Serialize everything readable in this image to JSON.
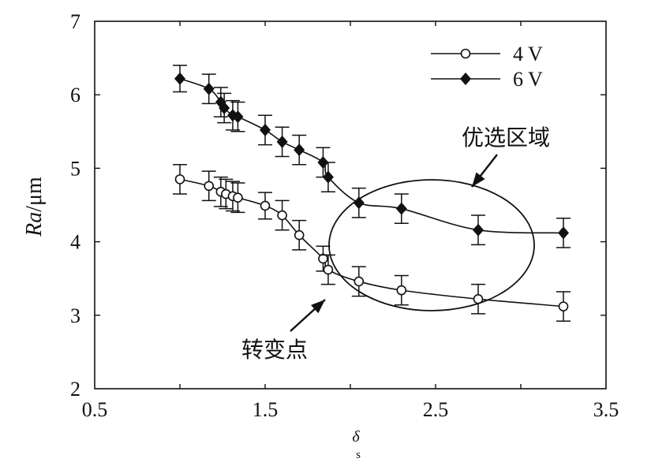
{
  "chart_data": {
    "type": "line",
    "xlabel": "δ",
    "xlabel_sub": "s",
    "ylabel_italic": "Ra",
    "ylabel_rest": "/μm",
    "xlim": [
      0.5,
      3.5
    ],
    "ylim": [
      2,
      7
    ],
    "xticks": [
      "0.5",
      "1.5",
      "2.5",
      "3.5"
    ],
    "yticks": [
      "2",
      "3",
      "4",
      "5",
      "6",
      "7"
    ],
    "grid": false,
    "legend_position": "top-right",
    "series": [
      {
        "name": "4 V",
        "marker": "open-circle",
        "x": [
          1.0,
          1.17,
          1.24,
          1.27,
          1.31,
          1.34,
          1.5,
          1.6,
          1.7,
          1.84,
          1.87,
          2.05,
          2.3,
          2.75,
          3.25
        ],
        "y": [
          4.85,
          4.76,
          4.68,
          4.65,
          4.62,
          4.6,
          4.49,
          4.36,
          4.09,
          3.77,
          3.62,
          3.46,
          3.34,
          3.22,
          3.12
        ],
        "err": [
          0.2,
          0.2,
          0.2,
          0.2,
          0.2,
          0.2,
          0.18,
          0.2,
          0.2,
          0.17,
          0.2,
          0.2,
          0.2,
          0.2,
          0.2
        ]
      },
      {
        "name": "6 V",
        "marker": "filled-diamond",
        "x": [
          1.0,
          1.17,
          1.24,
          1.26,
          1.31,
          1.34,
          1.5,
          1.6,
          1.7,
          1.84,
          1.87,
          2.05,
          2.3,
          2.75,
          3.25
        ],
        "y": [
          6.22,
          6.08,
          5.9,
          5.82,
          5.72,
          5.7,
          5.52,
          5.36,
          5.25,
          5.08,
          4.88,
          4.53,
          4.45,
          4.16,
          4.12
        ],
        "err": [
          0.18,
          0.2,
          0.2,
          0.2,
          0.2,
          0.2,
          0.2,
          0.2,
          0.2,
          0.2,
          0.2,
          0.2,
          0.2,
          0.2,
          0.2
        ]
      }
    ],
    "annotations": [
      {
        "text": "优选区域"
      },
      {
        "text": "转变点"
      }
    ]
  }
}
